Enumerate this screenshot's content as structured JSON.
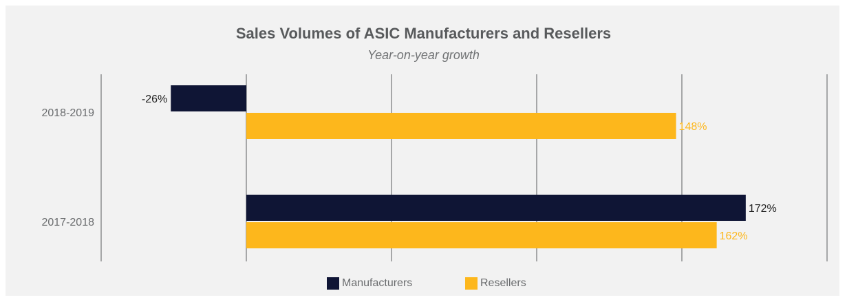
{
  "chart_data": {
    "type": "bar",
    "orientation": "horizontal",
    "title": "Sales Volumes of ASIC Manufacturers and Resellers",
    "subtitle": "Year-on-year growth",
    "categories": [
      "2018-2019",
      "2017-2018"
    ],
    "series": [
      {
        "name": "Manufacturers",
        "color": "#0f1535",
        "values": [
          -26,
          172
        ],
        "labels": [
          "-26%",
          "172%"
        ],
        "label_color": "#222222"
      },
      {
        "name": "Resellers",
        "color": "#fdb71c",
        "values": [
          148,
          162
        ],
        "labels": [
          "148%",
          "162%"
        ],
        "label_color": "#fdb71c"
      }
    ],
    "xlim": [
      -50,
      200
    ],
    "x_gridlines": [
      -50,
      0,
      50,
      100,
      150,
      200
    ],
    "grid": true,
    "legend_position": "bottom-center",
    "value_suffix": "%"
  }
}
